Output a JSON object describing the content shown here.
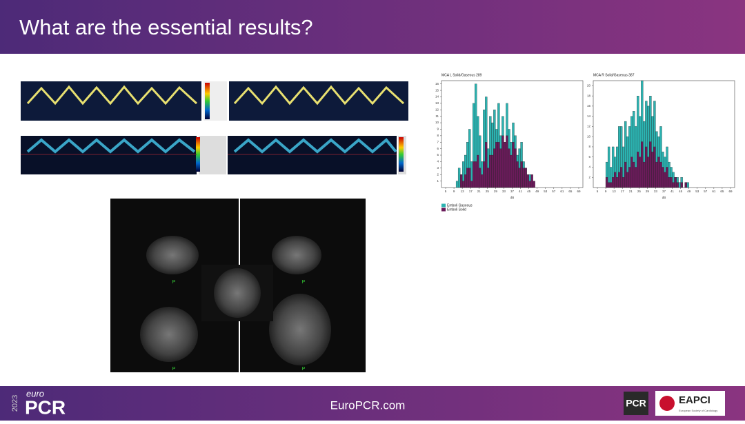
{
  "header": {
    "title": "What are the essential results?"
  },
  "mri": {
    "labels": [
      "P",
      "P",
      "P",
      "P"
    ]
  },
  "footer": {
    "year": "2023",
    "brand_small": "euro",
    "brand": "PCR",
    "url": "EuroPCR.com",
    "logo_pcr": "PCR",
    "logo_eapci": "EAPCI",
    "logo_esc": "European Society of Cardiology"
  },
  "chart_data": [
    {
      "type": "histogram",
      "title": "MCA L Solid/Gaseous 289",
      "x_label": "dB",
      "bins": [
        10,
        11,
        12,
        13,
        14,
        15,
        16,
        17,
        18,
        19,
        20,
        21,
        22,
        23,
        24,
        25,
        26,
        27,
        28,
        29,
        30,
        31,
        32,
        33,
        34,
        35,
        36,
        37,
        38,
        39,
        40,
        41,
        42,
        43,
        44,
        45,
        46,
        47,
        48
      ],
      "series": [
        {
          "name": "Emboli Gaseous",
          "color": "#2bb3b1",
          "values": [
            1,
            3,
            2,
            4,
            5,
            7,
            9,
            4,
            13,
            16,
            11,
            8,
            4,
            12,
            14,
            6,
            11,
            10,
            12,
            9,
            13,
            8,
            11,
            7,
            13,
            9,
            7,
            10,
            8,
            5,
            6,
            7,
            4,
            3,
            2,
            2,
            1,
            0
          ]
        },
        {
          "name": "Emboli Solid",
          "color": "#6a1b5a",
          "values": [
            0,
            0,
            2,
            1,
            2,
            3,
            3,
            1,
            4,
            4,
            5,
            3,
            2,
            4,
            7,
            3,
            5,
            5,
            6,
            7,
            7,
            6,
            8,
            7,
            8,
            6,
            5,
            7,
            6,
            4,
            3,
            4,
            3,
            3,
            2,
            1,
            2,
            1
          ]
        }
      ],
      "xlim": [
        3,
        71
      ],
      "xticks": [
        5,
        9,
        13,
        17,
        21,
        25,
        29,
        33,
        37,
        41,
        45,
        49,
        53,
        57,
        61,
        65,
        69
      ],
      "ylim": [
        0,
        16.5
      ],
      "yticks": [
        1,
        2,
        3,
        4,
        5,
        6,
        7,
        8,
        9,
        10,
        11,
        12,
        13,
        14,
        15,
        16
      ]
    },
    {
      "type": "histogram",
      "title": "MCA R Solid/Gaseous 387",
      "x_label": "dB",
      "bins": [
        9,
        10,
        11,
        12,
        13,
        14,
        15,
        16,
        17,
        18,
        19,
        20,
        21,
        22,
        23,
        24,
        25,
        26,
        27,
        28,
        29,
        30,
        31,
        32,
        33,
        34,
        35,
        36,
        37,
        38,
        39,
        40,
        41,
        42,
        43,
        44,
        45,
        46,
        47,
        48,
        49
      ],
      "series": [
        {
          "name": "Emboli Gaseous",
          "color": "#2bb3b1",
          "values": [
            5,
            8,
            4,
            8,
            6,
            8,
            12,
            12,
            8,
            13,
            10,
            12,
            14,
            15,
            12,
            18,
            14,
            21,
            13,
            17,
            16,
            18,
            14,
            17,
            11,
            10,
            12,
            7,
            6,
            8,
            5,
            4,
            3,
            2,
            2,
            1,
            2,
            0,
            1,
            1
          ]
        },
        {
          "name": "Emboli Solid",
          "color": "#6a1b5a",
          "values": [
            2,
            1,
            1,
            2,
            3,
            2,
            3,
            4,
            2,
            5,
            3,
            4,
            6,
            5,
            4,
            7,
            6,
            9,
            5,
            8,
            6,
            9,
            7,
            8,
            5,
            6,
            5,
            4,
            3,
            4,
            2,
            2,
            1,
            2,
            1,
            0,
            1,
            0,
            1,
            0
          ]
        }
      ],
      "xlim": [
        3,
        71
      ],
      "xticks": [
        5,
        9,
        13,
        17,
        21,
        25,
        29,
        33,
        37,
        41,
        45,
        49,
        53,
        57,
        61,
        65,
        69
      ],
      "ylim": [
        0,
        21
      ],
      "yticks": [
        2,
        4,
        6,
        8,
        10,
        12,
        14,
        16,
        18,
        20
      ]
    }
  ]
}
